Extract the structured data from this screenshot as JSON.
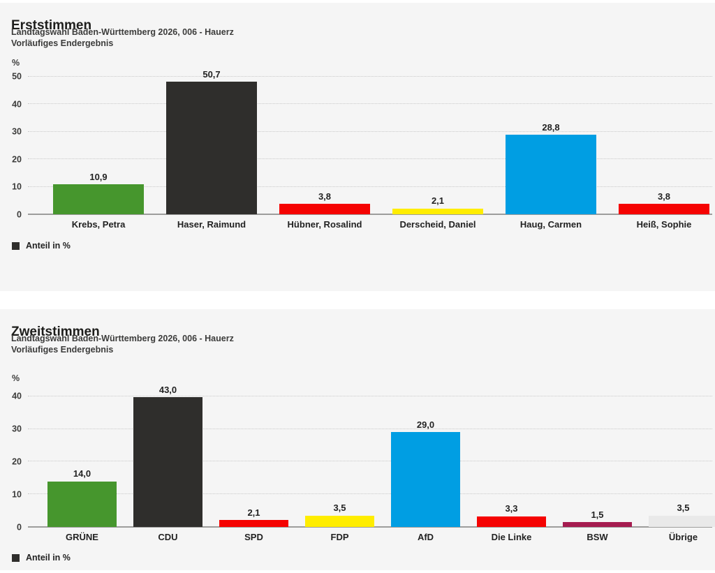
{
  "page": {
    "background": "#f5f5f5",
    "divider_color": "#ffffff",
    "axis_line_color": "#9d9d9c",
    "gridline_color": "#c9c9c9"
  },
  "chart_data": [
    {
      "type": "bar",
      "title": "Erststimmen",
      "subtitle1": "Landtagswahl Baden-Württemberg 2026, 006 - Hauerz",
      "subtitle2": "Vorläufiges Endergebnis",
      "unit_label": "%",
      "legend_label": "Anteil in %",
      "legend_color": "#2f2e2c",
      "legend_position": "bottom-left",
      "grid": "dotted-horizontal",
      "categories": [
        "Krebs, Petra",
        "Haser, Raimund",
        "Hübner, Rosalind",
        "Derscheid, Daniel",
        "Haug, Carmen",
        "Heiß, Sophie"
      ],
      "values": [
        10.9,
        50.7,
        3.8,
        2.1,
        28.8,
        3.8
      ],
      "value_labels": [
        "10,9",
        "50,7",
        "3,8",
        "2,1",
        "28,8",
        "3,8"
      ],
      "bar_colors": [
        "#46962d",
        "#2f2e2c",
        "#f50302",
        "#ffed00",
        "#009ee3",
        "#f50302"
      ],
      "xlabel": "",
      "ylabel": "%",
      "ylim": [
        0,
        52.5
      ],
      "yticks": [
        0,
        10,
        20,
        30,
        40,
        50
      ]
    },
    {
      "type": "bar",
      "title": "Zweitstimmen",
      "subtitle1": "Landtagswahl Baden-Württemberg 2026, 006 - Hauerz",
      "subtitle2": "Vorläufiges Endergebnis",
      "unit_label": "%",
      "legend_label": "Anteil in %",
      "legend_color": "#2f2e2c",
      "legend_position": "bottom-left",
      "grid": "dotted-horizontal",
      "categories": [
        "GRÜNE",
        "CDU",
        "SPD",
        "FDP",
        "AfD",
        "Die Linke",
        "BSW",
        "Übrige"
      ],
      "values": [
        14.0,
        43.0,
        2.1,
        3.5,
        29.0,
        3.3,
        1.5,
        3.5
      ],
      "value_labels": [
        "14,0",
        "43,0",
        "2,1",
        "3,5",
        "29,0",
        "3,3",
        "1,5",
        "3,5"
      ],
      "bar_colors": [
        "#46962d",
        "#2f2e2c",
        "#f50302",
        "#ffed00",
        "#009ee3",
        "#f50302",
        "#a51c50",
        "#e9e9e9"
      ],
      "xlabel": "",
      "ylabel": "%",
      "ylim": [
        0,
        43.4
      ],
      "yticks": [
        0,
        10,
        20,
        30,
        40
      ]
    }
  ]
}
